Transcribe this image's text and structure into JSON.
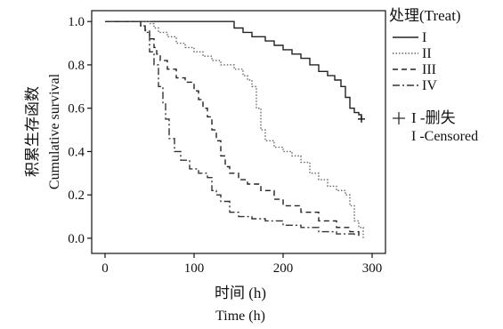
{
  "chart_data": {
    "type": "line",
    "title": "",
    "ylabel_cn": "积累生存函数",
    "ylabel_en": "Cumulative survival",
    "xlabel_cn": "时间 (h)",
    "xlabel_en": "Time (h)",
    "xlim": [
      -15,
      315
    ],
    "ylim": [
      -0.07,
      1.05
    ],
    "x_ticks": [
      0,
      100,
      200,
      300
    ],
    "y_ticks": [
      0.0,
      0.2,
      0.4,
      0.6,
      0.8,
      1.0
    ],
    "x_tick_labels": [
      "0",
      "100",
      "200",
      "300"
    ],
    "y_tick_labels": [
      "0.0",
      "0.2",
      "0.4",
      "0.6",
      "0.8",
      "1.0"
    ],
    "legend": {
      "title": "处理(Treat)",
      "placement": "right",
      "entries": [
        "I",
        "II",
        "III",
        "IV"
      ],
      "censor_label_cn": "I -删失",
      "censor_label_en": "I -Censored"
    },
    "censored": [
      {
        "series": "I",
        "x": 288,
        "y": 0.55
      }
    ],
    "series": [
      {
        "name": "I",
        "color": "#222222",
        "dash": "",
        "points": [
          [
            0,
            1.0
          ],
          [
            30,
            1.0
          ],
          [
            60,
            1.0
          ],
          [
            140,
            1.0
          ],
          [
            145,
            0.97
          ],
          [
            155,
            0.95
          ],
          [
            165,
            0.93
          ],
          [
            180,
            0.91
          ],
          [
            190,
            0.89
          ],
          [
            200,
            0.87
          ],
          [
            210,
            0.85
          ],
          [
            220,
            0.83
          ],
          [
            230,
            0.8
          ],
          [
            240,
            0.77
          ],
          [
            250,
            0.75
          ],
          [
            258,
            0.73
          ],
          [
            265,
            0.7
          ],
          [
            270,
            0.65
          ],
          [
            275,
            0.6
          ],
          [
            280,
            0.58
          ],
          [
            285,
            0.57
          ],
          [
            288,
            0.55
          ]
        ]
      },
      {
        "name": "II",
        "color": "#666666",
        "dash": "1.5,2",
        "points": [
          [
            0,
            1.0
          ],
          [
            40,
            1.0
          ],
          [
            50,
            0.99
          ],
          [
            55,
            0.97
          ],
          [
            60,
            0.95
          ],
          [
            70,
            0.93
          ],
          [
            80,
            0.9
          ],
          [
            90,
            0.88
          ],
          [
            100,
            0.86
          ],
          [
            110,
            0.84
          ],
          [
            120,
            0.82
          ],
          [
            130,
            0.8
          ],
          [
            145,
            0.78
          ],
          [
            155,
            0.75
          ],
          [
            160,
            0.73
          ],
          [
            165,
            0.7
          ],
          [
            170,
            0.6
          ],
          [
            175,
            0.5
          ],
          [
            180,
            0.45
          ],
          [
            190,
            0.42
          ],
          [
            200,
            0.4
          ],
          [
            210,
            0.38
          ],
          [
            220,
            0.35
          ],
          [
            230,
            0.3
          ],
          [
            240,
            0.27
          ],
          [
            250,
            0.24
          ],
          [
            260,
            0.22
          ],
          [
            270,
            0.2
          ],
          [
            275,
            0.15
          ],
          [
            280,
            0.08
          ],
          [
            285,
            0.05
          ],
          [
            290,
            0.0
          ]
        ]
      },
      {
        "name": "III",
        "color": "#222222",
        "dash": "6,4",
        "points": [
          [
            0,
            1.0
          ],
          [
            30,
            1.0
          ],
          [
            40,
            0.98
          ],
          [
            45,
            0.96
          ],
          [
            50,
            0.92
          ],
          [
            55,
            0.88
          ],
          [
            58,
            0.85
          ],
          [
            62,
            0.82
          ],
          [
            70,
            0.78
          ],
          [
            80,
            0.74
          ],
          [
            90,
            0.72
          ],
          [
            100,
            0.68
          ],
          [
            105,
            0.64
          ],
          [
            110,
            0.6
          ],
          [
            115,
            0.56
          ],
          [
            120,
            0.5
          ],
          [
            125,
            0.45
          ],
          [
            130,
            0.38
          ],
          [
            135,
            0.33
          ],
          [
            140,
            0.3
          ],
          [
            150,
            0.27
          ],
          [
            160,
            0.25
          ],
          [
            175,
            0.22
          ],
          [
            190,
            0.18
          ],
          [
            200,
            0.15
          ],
          [
            220,
            0.12
          ],
          [
            240,
            0.08
          ],
          [
            260,
            0.05
          ],
          [
            275,
            0.03
          ],
          [
            285,
            0.0
          ]
        ]
      },
      {
        "name": "IV",
        "color": "#333333",
        "dash": "8,3,2,3",
        "points": [
          [
            0,
            1.0
          ],
          [
            30,
            1.0
          ],
          [
            40,
            0.98
          ],
          [
            45,
            0.95
          ],
          [
            50,
            0.86
          ],
          [
            55,
            0.8
          ],
          [
            60,
            0.7
          ],
          [
            65,
            0.62
          ],
          [
            68,
            0.55
          ],
          [
            72,
            0.46
          ],
          [
            78,
            0.4
          ],
          [
            85,
            0.36
          ],
          [
            95,
            0.32
          ],
          [
            105,
            0.3
          ],
          [
            115,
            0.28
          ],
          [
            120,
            0.22
          ],
          [
            125,
            0.2
          ],
          [
            130,
            0.17
          ],
          [
            140,
            0.12
          ],
          [
            150,
            0.1
          ],
          [
            165,
            0.09
          ],
          [
            180,
            0.08
          ],
          [
            200,
            0.06
          ],
          [
            220,
            0.05
          ],
          [
            240,
            0.03
          ],
          [
            260,
            0.02
          ],
          [
            280,
            0.01
          ]
        ]
      }
    ]
  }
}
